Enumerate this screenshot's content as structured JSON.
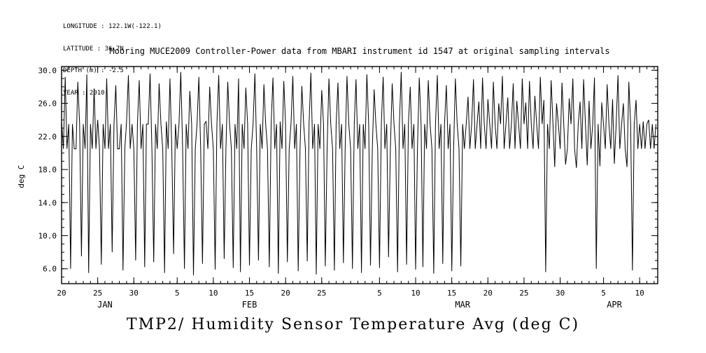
{
  "meta": {
    "longitude": "LONGITUDE : 122.1W(-122.1)",
    "latitude": "LATITUDE : 36.7N",
    "depth": "DEPTH (m) : -2.5",
    "year": "YEAR : 2010"
  },
  "chart_data": {
    "type": "line",
    "title": "Mooring MUCE2009 Controller-Power data from MBARI instrument id 1547 at original sampling intervals",
    "series_label": "TMP2/ Humidity Sensor Temperature Avg (deg C)",
    "ylabel": "deg C",
    "xlabel": "",
    "x_unit": "days since 2010-01-20",
    "x_start": 0,
    "x_step": 0.25,
    "x_total": 82.5,
    "ylim": [
      4.2,
      30.45
    ],
    "y_minor_step": 1,
    "x_minor_step": 1,
    "grid": false,
    "line_color": "#000000",
    "y_ticks": [
      {
        "value": 30,
        "label": "30.0"
      },
      {
        "value": 26,
        "label": "26.0"
      },
      {
        "value": 22,
        "label": "22.0"
      },
      {
        "value": 18,
        "label": "18.0"
      },
      {
        "value": 14,
        "label": "14.0"
      },
      {
        "value": 10,
        "label": "10.0"
      },
      {
        "value": 6,
        "label": "6.0"
      }
    ],
    "x_ticks": [
      {
        "day": 0,
        "label": "20"
      },
      {
        "day": 5,
        "label": "25"
      },
      {
        "day": 10,
        "label": "30"
      },
      {
        "day": 16,
        "label": "5"
      },
      {
        "day": 21,
        "label": "10"
      },
      {
        "day": 26,
        "label": "15"
      },
      {
        "day": 31,
        "label": "20"
      },
      {
        "day": 36,
        "label": "25"
      },
      {
        "day": 44,
        "label": "5"
      },
      {
        "day": 49,
        "label": "10"
      },
      {
        "day": 54,
        "label": "15"
      },
      {
        "day": 59,
        "label": "20"
      },
      {
        "day": 64,
        "label": "25"
      },
      {
        "day": 69,
        "label": "30"
      },
      {
        "day": 75,
        "label": "5"
      },
      {
        "day": 80,
        "label": "10"
      }
    ],
    "month_labels": [
      {
        "day": 6,
        "label": "JAN"
      },
      {
        "day": 26,
        "label": "FEB"
      },
      {
        "day": 55.5,
        "label": "MAR"
      },
      {
        "day": 76.5,
        "label": "APR"
      }
    ],
    "values": [
      23.8,
      20.5,
      29.2,
      20.5,
      23.5,
      6.0,
      23.5,
      20.5,
      20.5,
      28.6,
      23.5,
      7.5,
      23.5,
      20.5,
      29.5,
      5.5,
      23.5,
      20.5,
      27.8,
      20.5,
      24.0,
      20.5,
      6.5,
      23.5,
      20.5,
      29.0,
      20.5,
      23.5,
      8.0,
      23.5,
      28.2,
      20.5,
      20.5,
      23.5,
      5.8,
      20.5,
      23.8,
      29.4,
      20.5,
      23.5,
      20.5,
      7.0,
      23.5,
      28.8,
      20.5,
      23.5,
      6.2,
      23.5,
      23.5,
      29.6,
      20.5,
      6.8,
      23.5,
      20.5,
      28.4,
      23.5,
      20.5,
      5.5,
      23.8,
      20.5,
      29.0,
      20.5,
      7.8,
      23.5,
      20.5,
      23.5,
      29.8,
      20.5,
      6.0,
      23.5,
      20.5,
      27.5,
      23.5,
      5.2,
      20.5,
      23.5,
      29.2,
      20.5,
      6.6,
      23.5,
      23.8,
      20.5,
      28.0,
      23.5,
      20.5,
      5.9,
      23.5,
      29.4,
      20.5,
      23.5,
      7.2,
      20.5,
      28.6,
      23.5,
      20.5,
      6.1,
      23.5,
      20.5,
      29.0,
      5.6,
      23.5,
      20.5,
      27.9,
      23.5,
      6.4,
      20.5,
      23.5,
      29.6,
      20.5,
      7.0,
      23.5,
      20.5,
      28.3,
      23.5,
      20.5,
      6.2,
      23.5,
      29.1,
      20.5,
      23.5,
      5.4,
      23.8,
      20.5,
      28.7,
      23.5,
      6.8,
      20.5,
      23.5,
      29.3,
      20.5,
      23.5,
      5.7,
      20.5,
      28.1,
      23.5,
      20.5,
      6.9,
      23.5,
      29.7,
      20.5,
      23.5,
      5.3,
      23.5,
      20.5,
      27.6,
      23.5,
      6.3,
      20.5,
      29.0,
      23.5,
      20.5,
      5.8,
      23.5,
      28.5,
      20.5,
      23.5,
      6.7,
      20.5,
      29.3,
      23.5,
      20.5,
      6.0,
      23.5,
      28.9,
      20.5,
      23.5,
      5.5,
      23.5,
      20.5,
      29.5,
      23.5,
      6.4,
      20.5,
      27.7,
      23.5,
      20.5,
      6.1,
      23.5,
      29.2,
      20.5,
      23.5,
      7.4,
      20.5,
      28.4,
      23.5,
      20.5,
      5.6,
      23.5,
      29.8,
      20.5,
      23.5,
      6.5,
      23.5,
      28.0,
      20.5,
      23.5,
      5.9,
      20.5,
      29.1,
      23.5,
      6.2,
      23.5,
      20.5,
      28.8,
      23.5,
      20.5,
      5.4,
      23.5,
      29.4,
      20.5,
      23.5,
      6.6,
      23.5,
      28.2,
      20.5,
      23.5,
      5.7,
      20.5,
      29.0,
      23.5,
      20.5,
      6.3,
      23.5,
      20.5,
      23.5,
      26.8,
      20.5,
      23.5,
      28.9,
      20.5,
      23.5,
      26.2,
      20.5,
      29.1,
      23.5,
      20.5,
      26.5,
      23.5,
      20.5,
      28.6,
      23.5,
      20.5,
      26.0,
      23.5,
      29.3,
      20.5,
      23.5,
      26.7,
      20.5,
      23.5,
      28.4,
      20.5,
      26.3,
      23.5,
      20.5,
      29.0,
      23.5,
      26.1,
      20.5,
      28.7,
      23.5,
      20.5,
      26.9,
      23.5,
      20.5,
      29.2,
      23.5,
      26.4,
      5.6,
      23.5,
      20.5,
      28.8,
      23.5,
      18.3,
      26.0,
      23.5,
      20.5,
      28.5,
      23.5,
      18.6,
      20.5,
      26.6,
      23.5,
      29.0,
      20.5,
      18.2,
      23.5,
      26.2,
      20.5,
      28.9,
      23.5,
      18.5,
      26.3,
      20.5,
      23.5,
      29.1,
      6.0,
      23.5,
      18.4,
      26.1,
      23.5,
      20.5,
      28.3,
      23.5,
      20.5,
      26.5,
      18.7,
      23.5,
      29.4,
      20.5,
      23.5,
      26.0,
      20.5,
      18.3,
      28.6,
      23.5,
      5.8,
      23.5,
      26.4,
      20.5,
      23.5,
      20.5,
      23.8,
      20.5,
      23.5,
      24.0,
      20.5,
      23.5,
      20.5,
      23.5
    ]
  }
}
